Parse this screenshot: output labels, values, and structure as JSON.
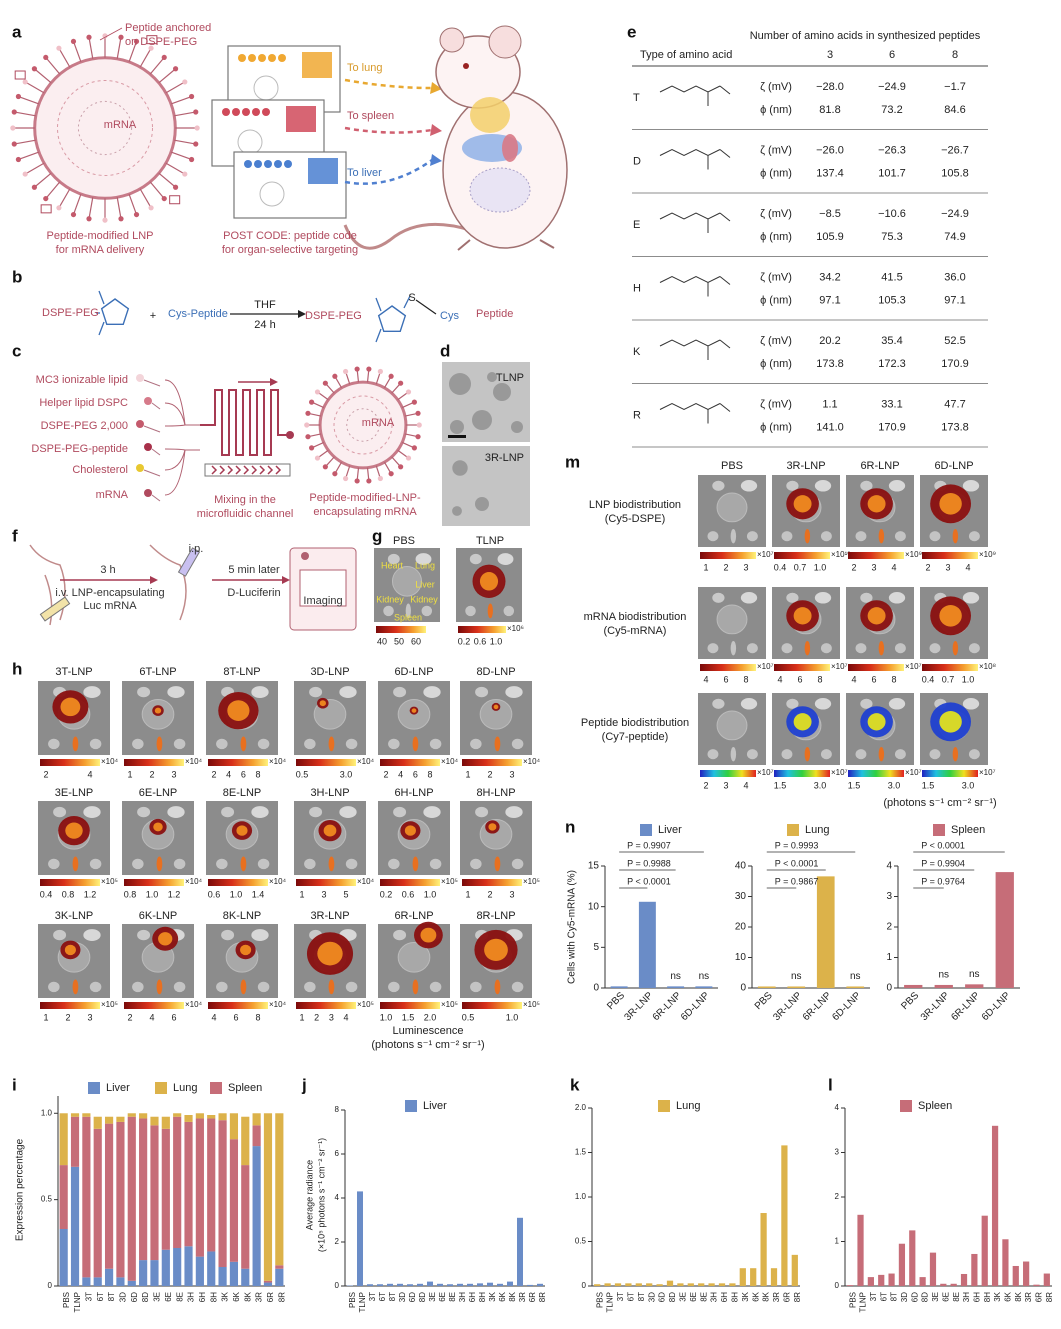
{
  "panel_labels": [
    "a",
    "b",
    "c",
    "d",
    "e",
    "f",
    "g",
    "h",
    "i",
    "j",
    "k",
    "l",
    "m",
    "n"
  ],
  "a": {
    "texts": [
      "Peptide anchored",
      "on DSPE-PEG",
      "mRNA",
      "Peptide-modified LNP",
      "for mRNA delivery",
      "To lung",
      "To spleen",
      "To liver",
      "POST CODE: peptide code",
      "for organ-selective targeting"
    ]
  },
  "b": {
    "texts": [
      "DSPE-PEG",
      "+",
      "Cys-Peptide",
      "THF",
      "24 h",
      "DSPE-PEG",
      "S",
      "Cys",
      "Peptide"
    ]
  },
  "c": {
    "texts": [
      "MC3 ionizable lipid",
      "Helper lipid DSPC",
      "DSPE-PEG 2,000",
      "DSPE-PEG-peptide",
      "Cholesterol",
      "mRNA",
      "Mixing in the",
      "microfluidic channel",
      "mRNA",
      "Peptide-modified-LNP-",
      "encapsulating mRNA"
    ]
  },
  "d": {
    "texts": [
      "TLNP",
      "3R-LNP"
    ]
  },
  "e": {
    "header": "Number of amino acids in synthesized peptides",
    "type_label": "Type of amino acid",
    "columns": [
      "3",
      "6",
      "8"
    ],
    "zeta_label": "ζ (mV)",
    "phi_label": "ϕ (nm)",
    "rows": [
      {
        "aa": "T",
        "zeta": [
          "−28.0",
          "−24.9",
          "−1.7"
        ],
        "phi": [
          "81.8",
          "73.2",
          "84.6"
        ]
      },
      {
        "aa": "D",
        "zeta": [
          "−26.0",
          "−26.3",
          "−26.7"
        ],
        "phi": [
          "137.4",
          "101.7",
          "105.8"
        ]
      },
      {
        "aa": "E",
        "zeta": [
          "−8.5",
          "−10.6",
          "−24.9"
        ],
        "phi": [
          "105.9",
          "75.3",
          "74.9"
        ]
      },
      {
        "aa": "H",
        "zeta": [
          "34.2",
          "41.5",
          "36.0"
        ],
        "phi": [
          "97.1",
          "105.3",
          "97.1"
        ]
      },
      {
        "aa": "K",
        "zeta": [
          "20.2",
          "35.4",
          "52.5"
        ],
        "phi": [
          "173.8",
          "172.3",
          "170.9"
        ]
      },
      {
        "aa": "R",
        "zeta": [
          "1.1",
          "33.1",
          "47.7"
        ],
        "phi": [
          "141.0",
          "170.9",
          "173.8"
        ]
      }
    ]
  },
  "f": {
    "texts": [
      "3 h",
      "i.v. LNP-encapsulating",
      "Luc mRNA",
      "i.p.",
      "5 min later",
      "D-Luciferin",
      "Imaging"
    ]
  },
  "g": {
    "texts": [
      "PBS",
      "TLNP",
      "Heart",
      "Lung",
      "Liver",
      "Kidney",
      "Kidney",
      "Spleen"
    ],
    "scales": [
      {
        "ticks": [
          "40",
          "50",
          "60"
        ]
      },
      {
        "ticks": [
          "0.2",
          "0.6",
          "1.0"
        ],
        "unit": "×10⁶"
      }
    ]
  },
  "h": {
    "images": [
      {
        "label": "3T-LNP",
        "ticks": [
          "2",
          "4"
        ],
        "unit": "×10⁴"
      },
      {
        "label": "6T-LNP",
        "ticks": [
          "1",
          "2",
          "3"
        ],
        "unit": "×10⁴"
      },
      {
        "label": "8T-LNP",
        "ticks": [
          "2",
          "4",
          "6",
          "8"
        ],
        "unit": "×10⁴"
      },
      {
        "label": "3D-LNP",
        "ticks": [
          "0.5",
          "3.0"
        ],
        "unit": "×10⁴"
      },
      {
        "label": "6D-LNP",
        "ticks": [
          "2",
          "4",
          "6",
          "8"
        ],
        "unit": "×10⁴"
      },
      {
        "label": "8D-LNP",
        "ticks": [
          "1",
          "2",
          "3"
        ],
        "unit": "×10⁴"
      },
      {
        "label": "3E-LNP",
        "ticks": [
          "0.4",
          "0.8",
          "1.2"
        ],
        "unit": "×10⁵"
      },
      {
        "label": "6E-LNP",
        "ticks": [
          "0.8",
          "1.0",
          "1.2"
        ],
        "unit": "×10⁴"
      },
      {
        "label": "8E-LNP",
        "ticks": [
          "0.6",
          "1.0",
          "1.4"
        ],
        "unit": "×10⁴"
      },
      {
        "label": "3H-LNP",
        "ticks": [
          "1",
          "3",
          "5"
        ],
        "unit": "×10⁴"
      },
      {
        "label": "6H-LNP",
        "ticks": [
          "0.2",
          "0.6",
          "1.0"
        ],
        "unit": "×10⁵"
      },
      {
        "label": "8H-LNP",
        "ticks": [
          "1",
          "2",
          "3"
        ],
        "unit": "×10⁵"
      },
      {
        "label": "3K-LNP",
        "ticks": [
          "1",
          "2",
          "3"
        ],
        "unit": "×10⁵"
      },
      {
        "label": "6K-LNP",
        "ticks": [
          "2",
          "4",
          "6"
        ],
        "unit": "×10⁴"
      },
      {
        "label": "8K-LNP",
        "ticks": [
          "4",
          "6",
          "8"
        ],
        "unit": "×10⁴"
      },
      {
        "label": "3R-LNP",
        "ticks": [
          "1",
          "2",
          "3",
          "4"
        ],
        "unit": "×10⁵"
      },
      {
        "label": "6R-LNP",
        "ticks": [
          "1.0",
          "1.5",
          "2.0"
        ],
        "unit": "×10⁵"
      },
      {
        "label": "8R-LNP",
        "ticks": [
          "0.5",
          "1.0"
        ],
        "unit": "×10⁵"
      }
    ],
    "caption": [
      "Luminescence",
      "(photons s⁻¹ cm⁻² sr⁻¹)"
    ]
  },
  "m": {
    "columns": [
      "PBS",
      "3R-LNP",
      "6R-LNP",
      "6D-LNP"
    ],
    "rows": [
      {
        "label": [
          "LNP biodistribution",
          "(Cy5-DSPE)"
        ],
        "scales": [
          {
            "ticks": [
              "1",
              "2",
              "3"
            ],
            "unit": "×10⁷"
          },
          {
            "ticks": [
              "0.4",
              "0.7",
              "1.0"
            ],
            "unit": "×10¹⁰"
          },
          {
            "ticks": [
              "2",
              "3",
              "4"
            ],
            "unit": "×10⁹"
          },
          {
            "ticks": [
              "2",
              "3",
              "4"
            ],
            "unit": "×10⁹"
          }
        ]
      },
      {
        "label": [
          "mRNA biodistribution",
          "(Cy5-mRNA)"
        ],
        "scales": [
          {
            "ticks": [
              "4",
              "6",
              "8"
            ],
            "unit": "×10⁷"
          },
          {
            "ticks": [
              "4",
              "6",
              "8"
            ],
            "unit": "×10⁷"
          },
          {
            "ticks": [
              "4",
              "6",
              "8"
            ],
            "unit": "×10⁷"
          },
          {
            "ticks": [
              "0.4",
              "0.7",
              "1.0"
            ],
            "unit": "×10⁸"
          }
        ]
      },
      {
        "label": [
          "Peptide biodistribution",
          "(Cy7-peptide)"
        ],
        "scales": [
          {
            "ticks": [
              "2",
              "3",
              "4"
            ],
            "unit": "×10⁷"
          },
          {
            "ticks": [
              "1.5",
              "3.0"
            ],
            "unit": "×10⁷"
          },
          {
            "ticks": [
              "1.5",
              "3.0"
            ],
            "unit": "×10⁷"
          },
          {
            "ticks": [
              "1.5",
              "3.0"
            ],
            "unit": "×10⁷"
          }
        ]
      }
    ],
    "caption": "(photons s⁻¹ cm⁻² sr⁻¹)"
  },
  "chart_data": [
    {
      "type": "bar",
      "y_label": "Cells with Cy5-mRNA (%)",
      "categories": [
        "PBS",
        "3R-LNP",
        "6R-LNP",
        "6D-LNP"
      ],
      "series": [
        {
          "name": "Liver",
          "color": "#6a8cc7",
          "values": [
            0.2,
            10.6,
            0.2,
            0.2
          ]
        }
      ],
      "ylim": [
        0,
        15
      ],
      "yticks": [
        0,
        5,
        10,
        15
      ],
      "comparisons": [
        "P = 0.9907",
        "P = 0.9988",
        "P < 0.0001"
      ],
      "annotations": [
        null,
        null,
        "ns",
        "ns"
      ]
    },
    {
      "type": "bar",
      "categories": [
        "PBS",
        "3R-LNP",
        "6R-LNP",
        "6D-LNP"
      ],
      "series": [
        {
          "name": "Lung",
          "color": "#dcb24a",
          "values": [
            0.5,
            0.5,
            36.6,
            0.5
          ]
        }
      ],
      "ylim": [
        0,
        40
      ],
      "yticks": [
        0,
        10,
        20,
        30,
        40
      ],
      "comparisons": [
        "P = 0.9993",
        "P < 0.0001",
        "P = 0.9867"
      ],
      "annotations": [
        null,
        "ns",
        null,
        "ns"
      ]
    },
    {
      "type": "bar",
      "categories": [
        "PBS",
        "3R-LNP",
        "6R-LNP",
        "6D-LNP"
      ],
      "series": [
        {
          "name": "Spleen",
          "color": "#c66d78",
          "values": [
            0.1,
            0.1,
            0.12,
            3.8
          ]
        }
      ],
      "ylim": [
        0,
        4
      ],
      "yticks": [
        0,
        1,
        2,
        3,
        4
      ],
      "comparisons": [
        "P < 0.0001",
        "P = 0.9904",
        "P = 0.9764"
      ],
      "annotations": [
        null,
        "ns",
        "ns",
        null
      ]
    },
    {
      "type": "stacked_bar",
      "y_label": "Expression percentage",
      "categories": [
        "PBS",
        "TLNP",
        "3T",
        "6T",
        "8T",
        "3D",
        "6D",
        "8D",
        "3E",
        "6E",
        "8E",
        "3H",
        "6H",
        "8H",
        "3K",
        "6K",
        "8K",
        "3R",
        "6R",
        "8R"
      ],
      "series": [
        {
          "name": "Liver",
          "color": "#6a8cc7",
          "values": [
            0.33,
            0.69,
            0.05,
            0.05,
            0.1,
            0.05,
            0.03,
            0.15,
            0.15,
            0.21,
            0.22,
            0.23,
            0.17,
            0.2,
            0.11,
            0.14,
            0.1,
            0.81,
            0.02,
            0.1
          ]
        },
        {
          "name": "Lung",
          "color": "#dcb24a",
          "values": [
            0.3,
            0.02,
            0.02,
            0.07,
            0.04,
            0.03,
            0.02,
            0.03,
            0.05,
            0.07,
            0.02,
            0.04,
            0.03,
            0.02,
            0.04,
            0.15,
            0.28,
            0.07,
            0.97,
            0.88
          ]
        },
        {
          "name": "Spleen",
          "color": "#c66d78",
          "values": [
            0.37,
            0.29,
            0.93,
            0.86,
            0.84,
            0.9,
            0.95,
            0.82,
            0.78,
            0.7,
            0.76,
            0.72,
            0.8,
            0.77,
            0.85,
            0.71,
            0.6,
            0.12,
            0.01,
            0.02
          ]
        }
      ],
      "stack_order": [
        0,
        2,
        1
      ],
      "ylim": [
        0,
        1.1
      ],
      "yticks": [
        0,
        0.5,
        {
          "value": 1,
          "label": "1.0"
        }
      ]
    },
    {
      "type": "bar",
      "y_label": [
        "Average radiance",
        "(×10⁵ photons s⁻¹ cm⁻² sr⁻¹)"
      ],
      "categories": [
        "PBS",
        "TLNP",
        "3T",
        "6T",
        "8T",
        "3D",
        "6D",
        "8D",
        "3E",
        "6E",
        "8E",
        "3H",
        "6H",
        "8H",
        "3K",
        "6K",
        "8K",
        "3R",
        "6R",
        "8R"
      ],
      "series": [
        {
          "name": "Liver",
          "color": "#6a8cc7",
          "values": [
            0.02,
            4.3,
            0.08,
            0.08,
            0.1,
            0.1,
            0.08,
            0.1,
            0.2,
            0.1,
            0.08,
            0.1,
            0.1,
            0.12,
            0.15,
            0.1,
            0.2,
            3.1,
            0.05,
            0.1
          ]
        }
      ],
      "ylim": [
        0,
        8
      ],
      "yticks": [
        0,
        2,
        4,
        6,
        8
      ]
    },
    {
      "type": "bar",
      "categories": [
        "PBS",
        "TLNP",
        "3T",
        "6T",
        "8T",
        "3D",
        "6D",
        "8D",
        "3E",
        "6E",
        "8E",
        "3H",
        "6H",
        "8H",
        "3K",
        "6K",
        "8K",
        "3R",
        "6R",
        "8R"
      ],
      "series": [
        {
          "name": "Lung",
          "color": "#dcb24a",
          "values": [
            0.02,
            0.03,
            0.03,
            0.03,
            0.03,
            0.03,
            0.02,
            0.06,
            0.03,
            0.03,
            0.03,
            0.03,
            0.03,
            0.03,
            0.2,
            0.2,
            0.82,
            0.2,
            1.58,
            0.35
          ]
        }
      ],
      "ylim": [
        0,
        2
      ],
      "yticks": [
        0,
        0.5,
        {
          "value": 1,
          "label": "1.0"
        },
        1.5,
        {
          "value": 2,
          "label": "2.0"
        }
      ]
    },
    {
      "type": "bar",
      "categories": [
        "PBS",
        "TLNP",
        "3T",
        "6T",
        "8T",
        "3D",
        "6D",
        "8D",
        "3E",
        "6E",
        "8E",
        "3H",
        "6H",
        "8H",
        "3K",
        "6K",
        "8K",
        "3R",
        "6R",
        "8R"
      ],
      "series": [
        {
          "name": "Spleen",
          "color": "#c66d78",
          "values": [
            0.02,
            1.6,
            0.2,
            0.25,
            0.28,
            0.95,
            1.25,
            0.2,
            0.75,
            0.05,
            0.05,
            0.27,
            0.72,
            1.58,
            3.6,
            1.05,
            0.45,
            0.55,
            0.03,
            0.28
          ]
        }
      ],
      "ylim": [
        0,
        4
      ],
      "yticks": [
        0,
        1,
        2,
        3,
        4
      ]
    }
  ]
}
